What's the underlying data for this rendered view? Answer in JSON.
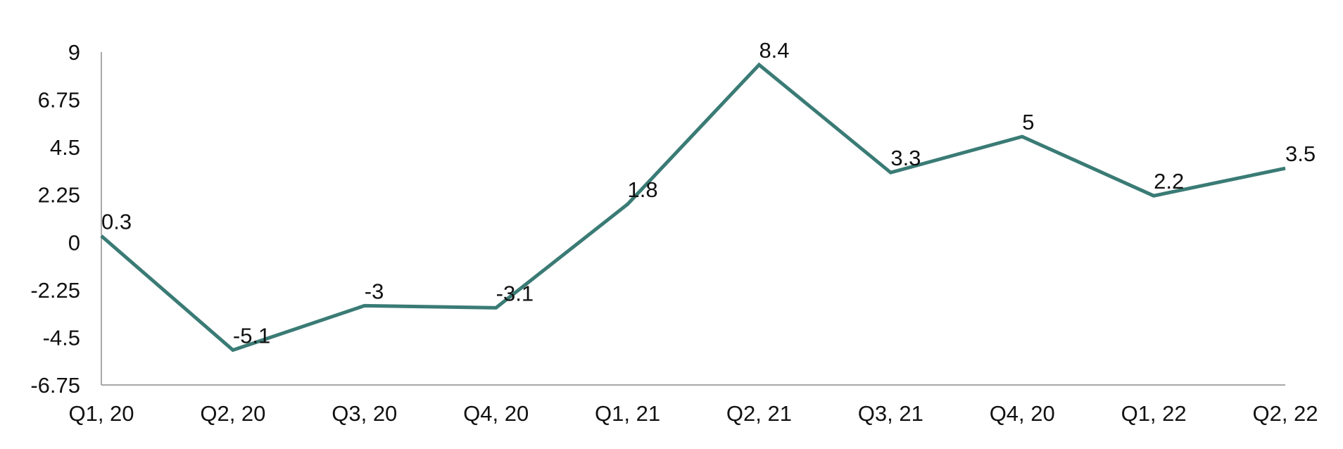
{
  "chart_data": {
    "type": "line",
    "categories": [
      "Q1, 20",
      "Q2, 20",
      "Q3, 20",
      "Q4, 20",
      "Q1, 21",
      "Q2, 21",
      "Q3, 21",
      "Q4, 20",
      "Q1, 22",
      "Q2, 22"
    ],
    "values": [
      0.3,
      -5.1,
      -3,
      -3.1,
      1.8,
      8.4,
      3.3,
      5,
      2.2,
      3.5
    ],
    "color": "#3a7b75",
    "ylim": [
      -6.75,
      9
    ],
    "yticks": [
      9,
      6.75,
      4.5,
      2.25,
      0,
      -2.25,
      -4.5,
      -6.75
    ],
    "grid": false
  }
}
